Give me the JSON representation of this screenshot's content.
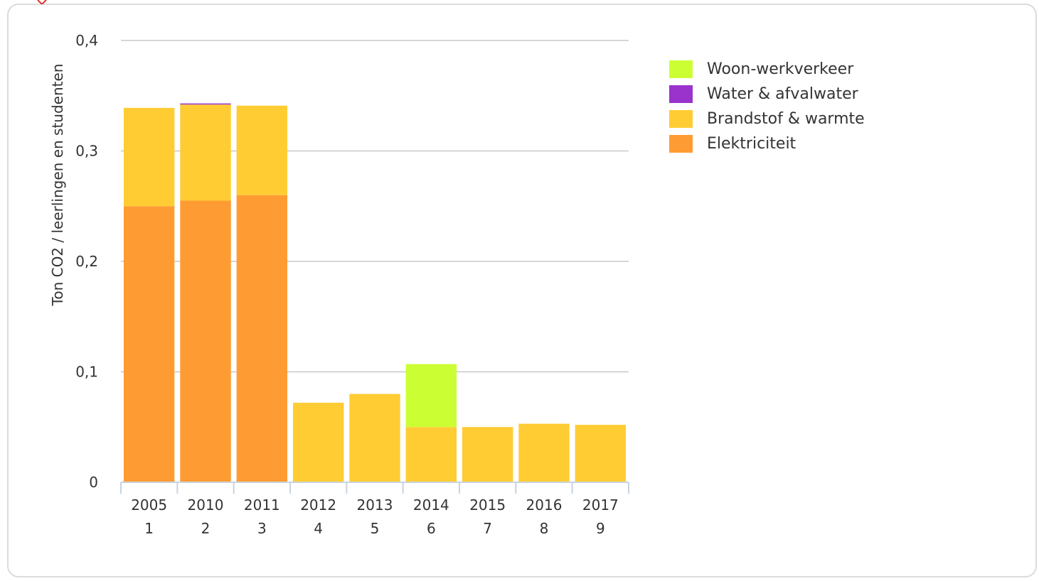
{
  "chart_data": {
    "type": "bar",
    "stacked": true,
    "ylabel": "Ton CO2 / leerlingen en studenten",
    "ylim": [
      0,
      0.4
    ],
    "yticks": [
      {
        "value": 0,
        "label": "0"
      },
      {
        "value": 0.1,
        "label": "0,1"
      },
      {
        "value": 0.2,
        "label": "0,2"
      },
      {
        "value": 0.3,
        "label": "0,3"
      },
      {
        "value": 0.4,
        "label": "0,4"
      }
    ],
    "grid": true,
    "legend_position": "top-right",
    "categories": [
      {
        "year": "2005",
        "index": "1"
      },
      {
        "year": "2010",
        "index": "2"
      },
      {
        "year": "2011",
        "index": "3"
      },
      {
        "year": "2012",
        "index": "4"
      },
      {
        "year": "2013",
        "index": "5"
      },
      {
        "year": "2014",
        "index": "6"
      },
      {
        "year": "2015",
        "index": "7"
      },
      {
        "year": "2016",
        "index": "8"
      },
      {
        "year": "2017",
        "index": "9"
      }
    ],
    "series": [
      {
        "name": "Elektriciteit",
        "color": "#FF9B33",
        "values": [
          0.25,
          0.255,
          0.26,
          0,
          0,
          0,
          0,
          0,
          0
        ]
      },
      {
        "name": "Brandstof & warmte",
        "color": "#FFCC33",
        "values": [
          0.089,
          0.087,
          0.081,
          0.072,
          0.08,
          0.05,
          0.05,
          0.053,
          0.052
        ]
      },
      {
        "name": "Water & afvalwater",
        "color": "#9933CC",
        "values": [
          0,
          0.001,
          0,
          0,
          0,
          0,
          0,
          0,
          0
        ]
      },
      {
        "name": "Woon-werkverkeer",
        "color": "#CCFF33",
        "values": [
          0,
          0,
          0,
          0,
          0,
          0.057,
          0,
          0,
          0
        ]
      }
    ],
    "legend_order": [
      "Woon-werkverkeer",
      "Water & afvalwater",
      "Brandstof & warmte",
      "Elektriciteit"
    ]
  }
}
